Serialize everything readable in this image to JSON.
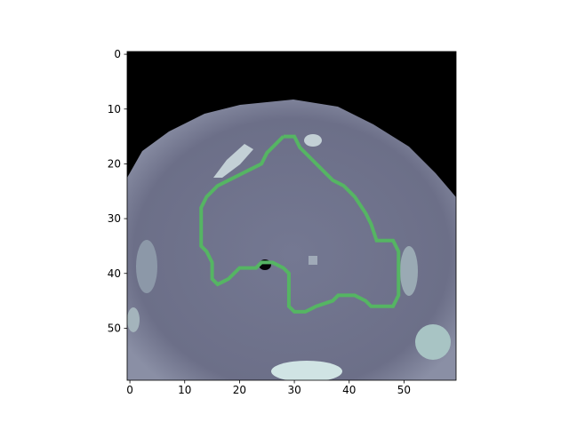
{
  "chart_data": {
    "type": "image",
    "xlim": [
      -0.5,
      59.5
    ],
    "ylim": [
      59.5,
      -0.5
    ],
    "xticks": [
      0,
      10,
      20,
      30,
      40,
      50
    ],
    "yticks": [
      0,
      10,
      20,
      30,
      40,
      50
    ],
    "contour": {
      "color": "#55b563",
      "x": [
        28,
        30,
        31,
        33,
        35,
        37,
        39,
        41,
        43,
        44,
        45,
        48,
        49,
        49,
        48,
        44,
        43,
        41,
        38,
        37,
        34,
        32,
        30,
        29,
        29,
        28,
        26,
        24,
        23,
        20,
        18,
        16,
        15,
        15,
        14,
        13,
        13,
        13,
        14,
        16,
        18,
        20,
        22,
        24,
        25,
        26,
        28
      ],
      "y": [
        15,
        15,
        17,
        19,
        21,
        23,
        24,
        26,
        29,
        31,
        34,
        34,
        36,
        44,
        46,
        46,
        45,
        44,
        44,
        45,
        46,
        47,
        47,
        46,
        40,
        39,
        38,
        38,
        39,
        39,
        41,
        42,
        41,
        38,
        36,
        35,
        32,
        28,
        26,
        24,
        23,
        22,
        21,
        20,
        18,
        17,
        15
      ]
    }
  }
}
